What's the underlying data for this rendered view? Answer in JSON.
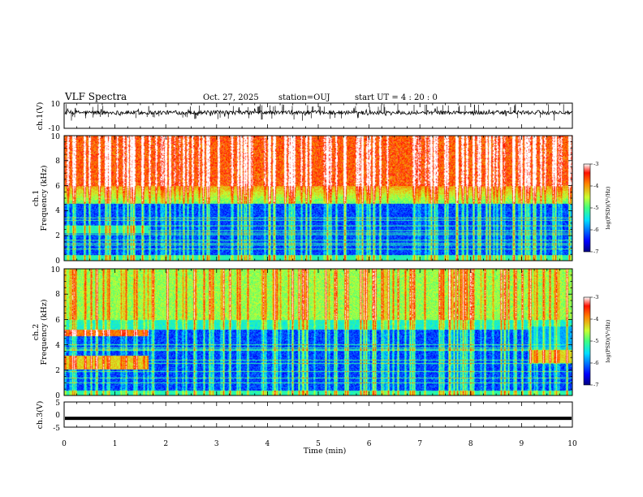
{
  "header": {
    "title": "VLF Spectra",
    "date": "Oct. 27, 2025",
    "station": "station=OUJ",
    "start_ut": "start  UT =   4 : 20 : 0"
  },
  "chart_data": {
    "type": "heatmap",
    "x": {
      "label": "Time  (min)",
      "range": [
        0,
        10
      ],
      "ticks": [
        "0",
        "1",
        "2",
        "3",
        "4",
        "5",
        "6",
        "7",
        "8",
        "9",
        "10"
      ]
    },
    "panels": [
      {
        "id": "ch1-waveform",
        "type": "line",
        "ylabel": "ch.1(V)",
        "ylim": [
          -10,
          10
        ],
        "yticks": [
          "10",
          "-10"
        ],
        "baseline": 2.5,
        "color": "#000000"
      },
      {
        "id": "ch1-spectrogram",
        "type": "heatmap",
        "ylabel_top": "ch.1",
        "ylabel": "Frequency  (kHz)",
        "ylim": [
          0,
          10
        ],
        "yticks": [
          "0",
          "2",
          "4",
          "6",
          "8",
          "10"
        ],
        "colorbar": {
          "label": "log(PSD)(V²/Hz)",
          "range": [
            -7,
            -3
          ],
          "ticks": [
            "-3",
            "-4",
            "-5",
            "-6",
            "-7"
          ]
        }
      },
      {
        "id": "ch2-spectrogram",
        "type": "heatmap",
        "ylabel_top": "ch.2",
        "ylabel": "Frequency  (kHz)",
        "ylim": [
          0,
          10
        ],
        "yticks": [
          "0",
          "2",
          "4",
          "6",
          "8",
          "10"
        ],
        "colorbar": {
          "label": "log(PSD)(V²/Hz)",
          "range": [
            -7,
            -3
          ],
          "ticks": [
            "-3",
            "-4",
            "-5",
            "-6",
            "-7"
          ]
        }
      },
      {
        "id": "ch3-waveform",
        "type": "line",
        "ylabel": "ch.3(V)",
        "ylim": [
          -5,
          5
        ],
        "yticks": [
          "5",
          "0",
          "-5"
        ],
        "baseline": -1.5,
        "color": "#000000"
      }
    ]
  }
}
